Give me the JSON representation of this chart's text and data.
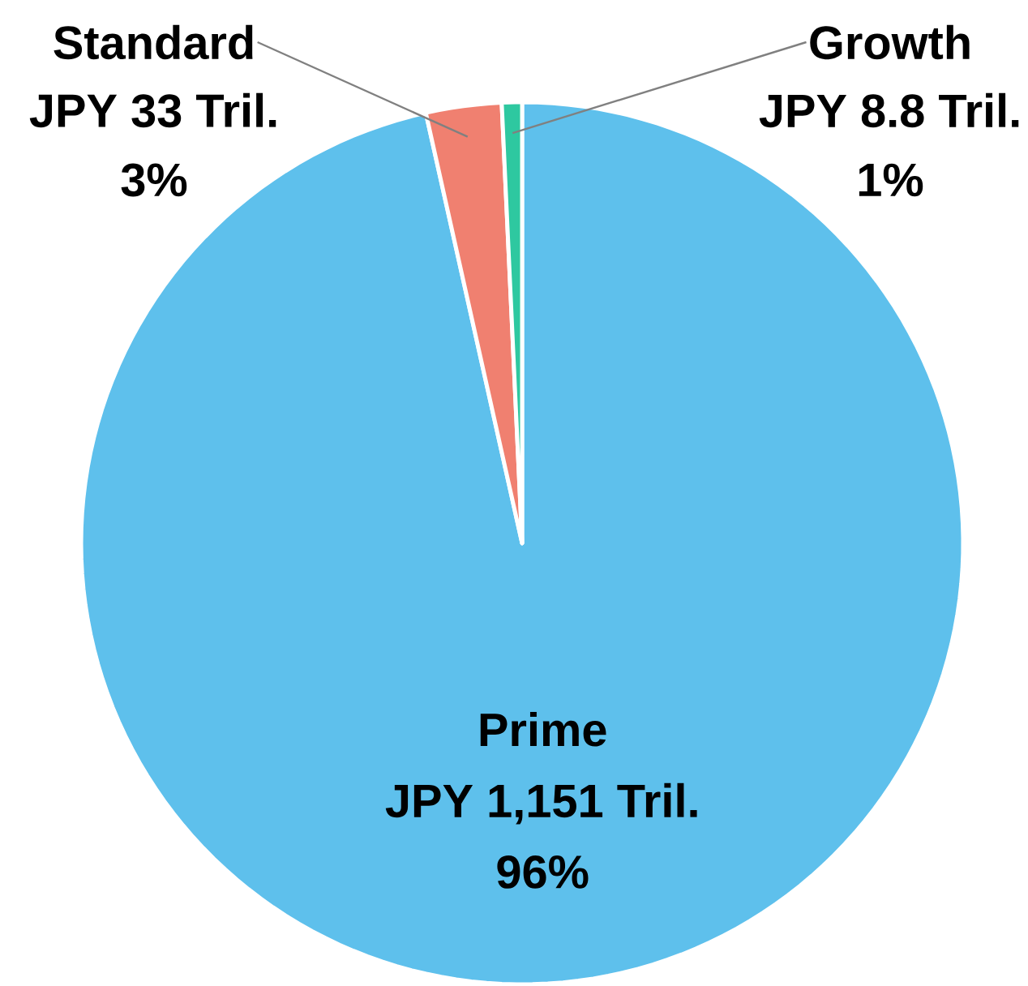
{
  "chart_data": {
    "type": "pie",
    "categories": [
      "Prime",
      "Standard",
      "Growth"
    ],
    "values": [
      1151,
      33,
      8.8
    ],
    "colors": [
      "#5ec0ec",
      "#f08070",
      "#2ec8a0"
    ],
    "value_labels": [
      "JPY 1,151 Tril.",
      "JPY 33 Tril.",
      "JPY 8.8 Tril."
    ],
    "annotations": [
      "96%",
      "3%",
      "1%"
    ]
  }
}
